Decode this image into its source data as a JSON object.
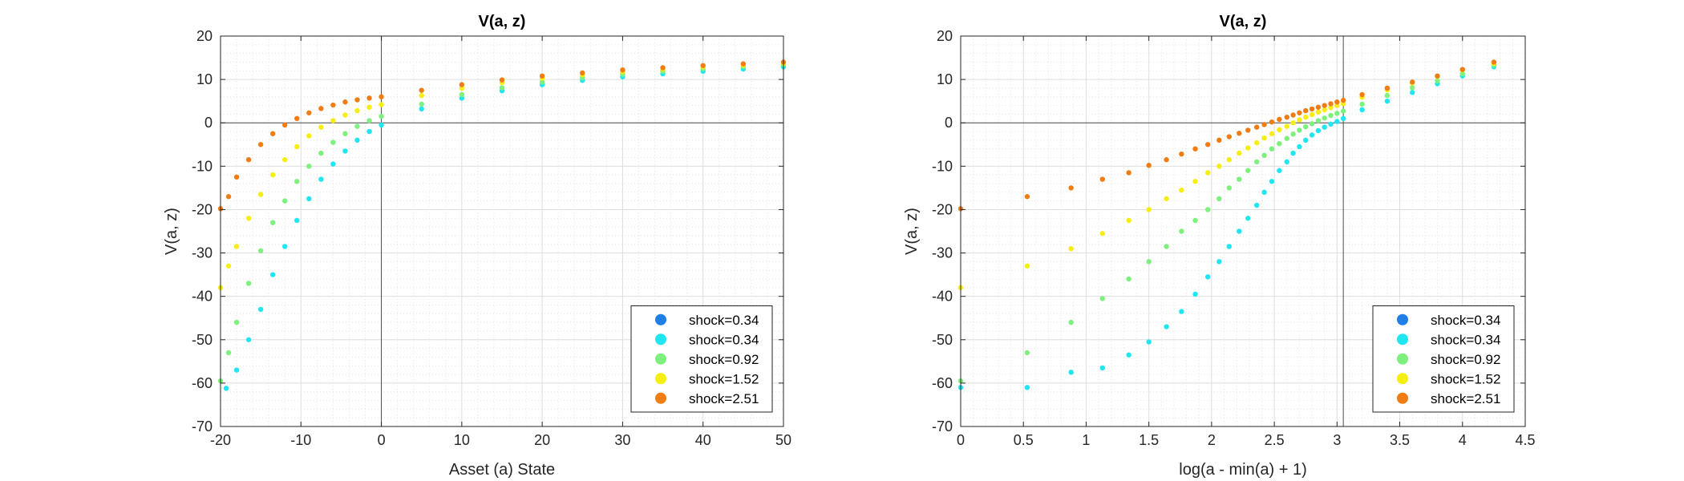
{
  "figure": {
    "background": "#ffffff"
  },
  "chart_data": [
    {
      "type": "scatter",
      "title": "V(a, z)",
      "xlabel": "Asset (a) State",
      "ylabel": "V(a, z)",
      "xlim": [
        -20,
        50
      ],
      "ylim": [
        -70,
        20
      ],
      "xticks": [
        -20,
        -10,
        0,
        10,
        20,
        30,
        40,
        50
      ],
      "yticks": [
        -70,
        -60,
        -50,
        -40,
        -30,
        -20,
        -10,
        0,
        10,
        20
      ],
      "grid": true,
      "minor_grid": true,
      "reference_lines": {
        "x": 0,
        "y": 0
      },
      "legend_position": "bottom-right",
      "series": [
        {
          "name": "shock=0.34",
          "color": "#1f7fe6",
          "x": [],
          "y": []
        },
        {
          "name": "shock=0.34",
          "color": "#1fe6f0",
          "x": [
            -19.3,
            -18.0,
            -16.5,
            -15.0,
            -13.5,
            -12.0,
            -10.5,
            -9.0,
            -7.5,
            -6.0,
            -4.5,
            -3.0,
            -1.5,
            0.0,
            5,
            10,
            15,
            20,
            25,
            30,
            35,
            40,
            45,
            50
          ],
          "y": [
            -61.2,
            -57.0,
            -50.0,
            -43.0,
            -35.0,
            -28.5,
            -22.5,
            -17.5,
            -13.0,
            -9.5,
            -6.5,
            -4.0,
            -2.0,
            -0.5,
            3.2,
            5.7,
            7.4,
            8.8,
            9.8,
            10.6,
            11.3,
            11.9,
            12.4,
            12.9
          ]
        },
        {
          "name": "shock=0.92",
          "color": "#7df07d",
          "x": [
            -20.0,
            -19.0,
            -18.0,
            -16.5,
            -15.0,
            -13.5,
            -12.0,
            -10.5,
            -9.0,
            -7.5,
            -6.0,
            -4.5,
            -3.0,
            -1.5,
            0.0,
            5,
            10,
            15,
            20,
            25,
            30,
            35,
            40,
            45,
            50
          ],
          "y": [
            -59.5,
            -53.0,
            -46.0,
            -37.0,
            -29.5,
            -23.0,
            -18.0,
            -13.5,
            -10.0,
            -7.0,
            -4.5,
            -2.5,
            -0.8,
            0.5,
            1.5,
            4.3,
            6.5,
            8.1,
            9.4,
            10.4,
            11.2,
            11.9,
            12.5,
            13.0,
            13.4
          ]
        },
        {
          "name": "shock=1.52",
          "color": "#f5ee10",
          "x": [
            -20.0,
            -19.0,
            -18.0,
            -16.5,
            -15.0,
            -13.5,
            -12.0,
            -10.5,
            -9.0,
            -7.5,
            -6.0,
            -4.5,
            -3.0,
            -1.5,
            0.0,
            5,
            10,
            15,
            20,
            25,
            30,
            35,
            40,
            45,
            50
          ],
          "y": [
            -38.0,
            -33.0,
            -28.5,
            -22.0,
            -16.5,
            -12.0,
            -8.5,
            -5.5,
            -3.0,
            -1.0,
            0.5,
            1.8,
            2.8,
            3.6,
            4.2,
            6.3,
            8.0,
            9.3,
            10.3,
            11.1,
            11.8,
            12.4,
            12.9,
            13.3,
            13.7
          ]
        },
        {
          "name": "shock=2.51",
          "color": "#f07d14",
          "x": [
            -20.0,
            -19.0,
            -18.0,
            -16.5,
            -15.0,
            -13.5,
            -12.0,
            -10.5,
            -9.0,
            -7.5,
            -6.0,
            -4.5,
            -3.0,
            -1.5,
            0.0,
            5,
            10,
            15,
            20,
            25,
            30,
            35,
            40,
            45,
            50
          ],
          "y": [
            -19.8,
            -17.0,
            -12.5,
            -8.5,
            -5.0,
            -2.5,
            -0.5,
            1.0,
            2.3,
            3.3,
            4.1,
            4.8,
            5.3,
            5.7,
            6.0,
            7.5,
            8.8,
            9.9,
            10.8,
            11.5,
            12.2,
            12.7,
            13.2,
            13.6,
            14.0
          ]
        }
      ]
    },
    {
      "type": "scatter",
      "title": "V(a, z)",
      "xlabel": "log(a - min(a) + 1)",
      "ylabel": "V(a, z)",
      "xlim": [
        0,
        4.5
      ],
      "ylim": [
        -70,
        20
      ],
      "xticks": [
        0,
        0.5,
        1,
        1.5,
        2,
        2.5,
        3,
        3.5,
        4,
        4.5
      ],
      "yticks": [
        -70,
        -60,
        -50,
        -40,
        -30,
        -20,
        -10,
        0,
        10,
        20
      ],
      "grid": true,
      "minor_grid": true,
      "reference_lines": {
        "x": 3.05,
        "y": 0
      },
      "legend_position": "bottom-right",
      "series": [
        {
          "name": "shock=0.34",
          "color": "#1f7fe6",
          "x": [],
          "y": []
        },
        {
          "name": "shock=0.34",
          "color": "#1fe6f0",
          "x": [
            0.0,
            0.53,
            0.88,
            1.13,
            1.34,
            1.5,
            1.64,
            1.76,
            1.87,
            1.97,
            2.06,
            2.14,
            2.22,
            2.29,
            2.36,
            2.42,
            2.48,
            2.54,
            2.6,
            2.65,
            2.7,
            2.75,
            2.8,
            2.85,
            2.9,
            2.95,
            3.0,
            3.05,
            3.2,
            3.4,
            3.6,
            3.8,
            4.0,
            4.25
          ],
          "y": [
            -61.0,
            -61.0,
            -57.5,
            -56.5,
            -53.5,
            -50.5,
            -47.0,
            -43.5,
            -39.5,
            -35.5,
            -32.0,
            -28.5,
            -25.0,
            -22.0,
            -19.0,
            -16.0,
            -13.5,
            -11.0,
            -9.0,
            -7.0,
            -5.5,
            -4.0,
            -2.8,
            -1.8,
            -1.0,
            -0.3,
            0.3,
            1.0,
            3.0,
            5.0,
            7.0,
            9.0,
            10.8,
            12.9
          ]
        },
        {
          "name": "shock=0.92",
          "color": "#7df07d",
          "x": [
            0.0,
            0.53,
            0.88,
            1.13,
            1.34,
            1.5,
            1.64,
            1.76,
            1.87,
            1.97,
            2.06,
            2.14,
            2.22,
            2.29,
            2.36,
            2.42,
            2.48,
            2.54,
            2.6,
            2.65,
            2.7,
            2.75,
            2.8,
            2.85,
            2.9,
            2.95,
            3.0,
            3.05,
            3.2,
            3.4,
            3.6,
            3.8,
            4.0,
            4.25
          ],
          "y": [
            -59.5,
            -53.0,
            -46.0,
            -40.5,
            -36.0,
            -32.0,
            -28.5,
            -25.0,
            -22.5,
            -20.0,
            -17.5,
            -15.0,
            -13.0,
            -11.0,
            -9.0,
            -7.5,
            -6.0,
            -4.8,
            -3.6,
            -2.6,
            -1.7,
            -0.9,
            -0.2,
            0.5,
            1.1,
            1.7,
            2.2,
            2.7,
            4.3,
            6.3,
            8.1,
            9.7,
            11.3,
            13.3
          ]
        },
        {
          "name": "shock=1.52",
          "color": "#f5ee10",
          "x": [
            0.0,
            0.53,
            0.88,
            1.13,
            1.34,
            1.5,
            1.64,
            1.76,
            1.87,
            1.97,
            2.06,
            2.14,
            2.22,
            2.29,
            2.36,
            2.42,
            2.48,
            2.54,
            2.6,
            2.65,
            2.7,
            2.75,
            2.8,
            2.85,
            2.9,
            2.95,
            3.0,
            3.05,
            3.2,
            3.4,
            3.6,
            3.8,
            4.0,
            4.25
          ],
          "y": [
            -38.0,
            -33.0,
            -29.0,
            -25.5,
            -22.5,
            -20.0,
            -17.5,
            -15.5,
            -13.5,
            -11.5,
            -10.0,
            -8.5,
            -7.0,
            -5.8,
            -4.6,
            -3.5,
            -2.5,
            -1.6,
            -0.8,
            0.0,
            0.7,
            1.3,
            1.9,
            2.5,
            3.0,
            3.5,
            4.0,
            4.4,
            5.9,
            7.6,
            9.2,
            10.7,
            12.2,
            13.7
          ]
        },
        {
          "name": "shock=2.51",
          "color": "#f07d14",
          "x": [
            0.0,
            0.53,
            0.88,
            1.13,
            1.34,
            1.5,
            1.64,
            1.76,
            1.87,
            1.97,
            2.06,
            2.14,
            2.22,
            2.29,
            2.36,
            2.42,
            2.48,
            2.54,
            2.6,
            2.65,
            2.7,
            2.75,
            2.8,
            2.85,
            2.9,
            2.95,
            3.0,
            3.05,
            3.2,
            3.4,
            3.6,
            3.8,
            4.0,
            4.25
          ],
          "y": [
            -19.8,
            -17.0,
            -15.0,
            -13.0,
            -11.5,
            -9.8,
            -8.5,
            -7.2,
            -6.0,
            -5.0,
            -4.0,
            -3.2,
            -2.4,
            -1.7,
            -1.0,
            -0.4,
            0.2,
            0.8,
            1.3,
            1.8,
            2.3,
            2.8,
            3.2,
            3.6,
            4.0,
            4.4,
            4.8,
            5.2,
            6.5,
            8.0,
            9.4,
            10.8,
            12.3,
            14.0
          ]
        }
      ]
    }
  ]
}
